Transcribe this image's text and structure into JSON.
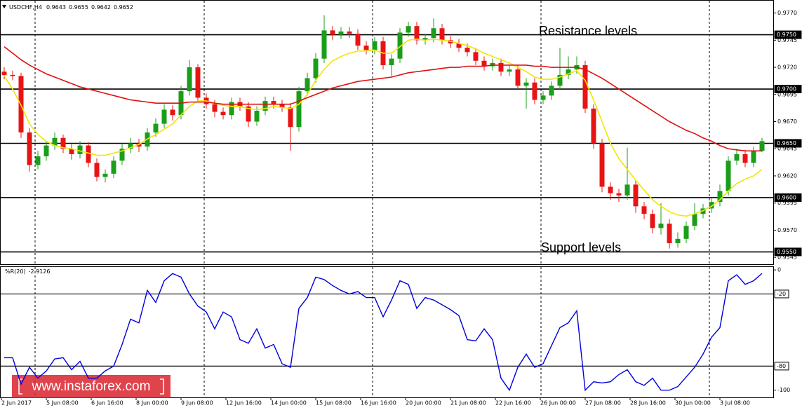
{
  "chart_data": [
    {
      "type": "candlestick",
      "title": "USDCHF,H4",
      "x_tick_labels": [
        "2 Jun 2017",
        "5 Jun 08:00",
        "6 Jun 16:00",
        "8 Jun 00:00",
        "9 Jun 08:00",
        "12 Jun 16:00",
        "14 Jun 00:00",
        "15 Jun 08:00",
        "16 Jun 16:00",
        "20 Jun 00:00",
        "21 Jun 08:00",
        "22 Jun 16:00",
        "26 Jun 00:00",
        "27 Jun 08:00",
        "28 Jun 16:00",
        "30 Jun 00:00",
        "3 Jul 08:00"
      ],
      "open": [
        0.9716,
        0.9713,
        0.9712,
        0.966,
        0.963,
        0.9638,
        0.9648,
        0.9655,
        0.9645,
        0.964,
        0.9648,
        0.9632,
        0.9619,
        0.9622,
        0.9634,
        0.9645,
        0.965,
        0.9647,
        0.966,
        0.9668,
        0.9681,
        0.9676,
        0.9698,
        0.972,
        0.9692,
        0.9686,
        0.9679,
        0.9676,
        0.9688,
        0.9684,
        0.967,
        0.968,
        0.9689,
        0.9686,
        0.9683,
        0.9665,
        0.9698,
        0.971,
        0.9728,
        0.9754,
        0.975,
        0.9753,
        0.9751,
        0.974,
        0.9736,
        0.9744,
        0.9722,
        0.9728,
        0.9752,
        0.9758,
        0.9745,
        0.9747,
        0.9756,
        0.9745,
        0.9742,
        0.9738,
        0.9734,
        0.9726,
        0.9721,
        0.9724,
        0.9716,
        0.9718,
        0.9703,
        0.9706,
        0.969,
        0.9694,
        0.9703,
        0.9713,
        0.9718,
        0.9722,
        0.9682,
        0.965,
        0.961,
        0.9604,
        0.9602,
        0.9612,
        0.9592,
        0.9585,
        0.9572,
        0.9576,
        0.9558,
        0.9562,
        0.9574,
        0.9585,
        0.959,
        0.9596,
        0.9606,
        0.9634,
        0.964,
        0.9632,
        0.9643
      ],
      "high": [
        0.972,
        0.9717,
        0.9715,
        0.9664,
        0.9643,
        0.9652,
        0.966,
        0.9658,
        0.9649,
        0.9652,
        0.9651,
        0.9636,
        0.9626,
        0.9638,
        0.965,
        0.9655,
        0.9654,
        0.9664,
        0.9673,
        0.9686,
        0.9685,
        0.9703,
        0.9727,
        0.9723,
        0.9696,
        0.969,
        0.9683,
        0.9692,
        0.9692,
        0.9688,
        0.9684,
        0.9693,
        0.9693,
        0.969,
        0.9687,
        0.9702,
        0.9715,
        0.9733,
        0.9768,
        0.9758,
        0.9757,
        0.9757,
        0.9755,
        0.9744,
        0.9748,
        0.9748,
        0.9732,
        0.9756,
        0.9762,
        0.9762,
        0.9751,
        0.9765,
        0.976,
        0.9749,
        0.9746,
        0.9742,
        0.9738,
        0.973,
        0.9728,
        0.9728,
        0.9722,
        0.9722,
        0.971,
        0.971,
        0.9698,
        0.9707,
        0.9738,
        0.973,
        0.973,
        0.9726,
        0.9686,
        0.9654,
        0.9614,
        0.9608,
        0.9646,
        0.9616,
        0.9596,
        0.9589,
        0.9595,
        0.958,
        0.9568,
        0.9578,
        0.9595,
        0.9594,
        0.96,
        0.9612,
        0.9638,
        0.9645,
        0.9644,
        0.9647,
        0.9655
      ],
      "low": [
        0.9709,
        0.9708,
        0.9655,
        0.9624,
        0.9626,
        0.9634,
        0.9644,
        0.9641,
        0.9635,
        0.9636,
        0.9628,
        0.9615,
        0.9614,
        0.9618,
        0.963,
        0.9641,
        0.9642,
        0.9643,
        0.9656,
        0.9664,
        0.9671,
        0.9672,
        0.9694,
        0.9688,
        0.9682,
        0.9674,
        0.9672,
        0.9672,
        0.968,
        0.9665,
        0.9666,
        0.9676,
        0.9682,
        0.9679,
        0.9643,
        0.9661,
        0.9694,
        0.9706,
        0.9724,
        0.9745,
        0.9746,
        0.9747,
        0.9736,
        0.9732,
        0.9732,
        0.9718,
        0.9712,
        0.9724,
        0.9748,
        0.9741,
        0.9741,
        0.9743,
        0.9741,
        0.9738,
        0.9734,
        0.973,
        0.9722,
        0.9717,
        0.9717,
        0.9712,
        0.9712,
        0.9699,
        0.9682,
        0.9686,
        0.9686,
        0.969,
        0.9699,
        0.9709,
        0.9714,
        0.9678,
        0.9645,
        0.9605,
        0.9598,
        0.9596,
        0.9598,
        0.9586,
        0.958,
        0.9567,
        0.9566,
        0.9553,
        0.9554,
        0.9558,
        0.957,
        0.9581,
        0.9586,
        0.9592,
        0.9602,
        0.963,
        0.9628,
        0.9628,
        0.9642
      ],
      "close": [
        0.9713,
        0.9712,
        0.966,
        0.963,
        0.9638,
        0.9648,
        0.9655,
        0.9645,
        0.964,
        0.9648,
        0.9632,
        0.9619,
        0.9622,
        0.9634,
        0.9645,
        0.965,
        0.9647,
        0.966,
        0.9668,
        0.9681,
        0.9676,
        0.9698,
        0.972,
        0.9692,
        0.9686,
        0.9679,
        0.9676,
        0.9688,
        0.9684,
        0.967,
        0.968,
        0.9689,
        0.9686,
        0.9683,
        0.9665,
        0.9698,
        0.971,
        0.9728,
        0.9754,
        0.975,
        0.9753,
        0.9751,
        0.974,
        0.9736,
        0.9744,
        0.9722,
        0.9728,
        0.9752,
        0.9758,
        0.9745,
        0.9747,
        0.9756,
        0.9745,
        0.9742,
        0.9738,
        0.9734,
        0.9726,
        0.9721,
        0.9724,
        0.9716,
        0.9718,
        0.9703,
        0.9706,
        0.969,
        0.9694,
        0.9703,
        0.9713,
        0.9718,
        0.9722,
        0.9682,
        0.965,
        0.961,
        0.9604,
        0.9602,
        0.9612,
        0.9592,
        0.9585,
        0.9572,
        0.9576,
        0.9558,
        0.9562,
        0.9574,
        0.9585,
        0.959,
        0.9596,
        0.9606,
        0.9634,
        0.964,
        0.9632,
        0.9643,
        0.9652
      ],
      "up_color": "#1a9e1a",
      "down_color": "#e81414",
      "series": [
        {
          "color": "#f2e600",
          "values": [
            0.9712,
            0.97,
            0.9685,
            0.9668,
            0.9658,
            0.9652,
            0.9648,
            0.9646,
            0.9645,
            0.9643,
            0.9641,
            0.9639,
            0.9639,
            0.9641,
            0.9643,
            0.9646,
            0.9649,
            0.9654,
            0.9658,
            0.9663,
            0.9668,
            0.9676,
            0.9684,
            0.9689,
            0.9689,
            0.9687,
            0.9685,
            0.9684,
            0.9684,
            0.9682,
            0.9681,
            0.9682,
            0.9684,
            0.9683,
            0.9682,
            0.9686,
            0.9695,
            0.9708,
            0.9718,
            0.9726,
            0.973,
            0.9733,
            0.9735,
            0.9735,
            0.9736,
            0.9733,
            0.9733,
            0.9739,
            0.9745,
            0.9746,
            0.9745,
            0.9746,
            0.9745,
            0.9744,
            0.9742,
            0.974,
            0.9737,
            0.9733,
            0.973,
            0.9727,
            0.9724,
            0.972,
            0.9716,
            0.9711,
            0.9709,
            0.9709,
            0.9711,
            0.9714,
            0.9717,
            0.9708,
            0.969,
            0.967,
            0.965,
            0.9636,
            0.9626,
            0.9616,
            0.9607,
            0.9598,
            0.9592,
            0.9587,
            0.9584,
            0.9583,
            0.9585,
            0.9588,
            0.9592,
            0.9598,
            0.9606,
            0.9613,
            0.9617,
            0.962,
            0.9626
          ]
        },
        {
          "color": "#e01010",
          "values": [
            0.9739,
            0.9733,
            0.9727,
            0.9722,
            0.9718,
            0.9714,
            0.9711,
            0.9708,
            0.9705,
            0.9702,
            0.97,
            0.9698,
            0.9696,
            0.9694,
            0.9692,
            0.969,
            0.9689,
            0.9688,
            0.9687,
            0.9687,
            0.9687,
            0.9687,
            0.9688,
            0.9688,
            0.9688,
            0.9687,
            0.9686,
            0.9686,
            0.9686,
            0.9686,
            0.9686,
            0.9686,
            0.9686,
            0.9686,
            0.9686,
            0.9689,
            0.9692,
            0.9695,
            0.9698,
            0.9701,
            0.9703,
            0.9705,
            0.9707,
            0.9708,
            0.9709,
            0.971,
            0.9711,
            0.9713,
            0.9715,
            0.9716,
            0.9717,
            0.9718,
            0.9719,
            0.972,
            0.972,
            0.9721,
            0.9721,
            0.9721,
            0.9722,
            0.9722,
            0.9722,
            0.9722,
            0.9722,
            0.9721,
            0.9721,
            0.972,
            0.972,
            0.972,
            0.972,
            0.9718,
            0.9714,
            0.971,
            0.9705,
            0.97,
            0.9695,
            0.969,
            0.9685,
            0.968,
            0.9675,
            0.967,
            0.9666,
            0.9662,
            0.9659,
            0.9655,
            0.9652,
            0.9648,
            0.9645,
            0.9644,
            0.9643,
            0.9643,
            0.9643
          ]
        }
      ],
      "ylim": [
        0.9538,
        0.9782
      ],
      "yticks": [
        {
          "value": 0.977,
          "label": "0.9770"
        },
        0.9745,
        {
          "value": 0.972,
          "label": "0.9720"
        },
        0.9695,
        {
          "value": 0.967,
          "label": "0.9670"
        },
        0.9645,
        {
          "value": 0.962,
          "label": "0.9620"
        },
        0.9595,
        {
          "value": 0.957,
          "label": "0.9570"
        },
        0.9545
      ],
      "levels": [
        {
          "value": 0.975,
          "label": "0.9750"
        },
        {
          "value": 0.97,
          "label": "0.9700"
        },
        {
          "value": 0.965,
          "label": "0.9650"
        },
        {
          "value": 0.96,
          "label": "0.9600"
        },
        {
          "value": 0.955,
          "label": "0.9550"
        }
      ],
      "annotations": [
        "Resistance levels",
        "Support levels"
      ],
      "watermark": "www.instaforex.com"
    },
    {
      "type": "line",
      "title": "%R(20)",
      "series": [
        {
          "color": "#0000dd",
          "values": [
            -73,
            -73,
            -95,
            -81,
            -90,
            -84,
            -74,
            -73,
            -83,
            -76,
            -90,
            -90,
            -84,
            -80,
            -62,
            -41,
            -44,
            -17,
            -27,
            -9,
            -3,
            -6,
            -20,
            -30,
            -35,
            -49,
            -35,
            -39,
            -58,
            -61,
            -49,
            -65,
            -62,
            -78,
            -81,
            -32,
            -23,
            -6,
            -8,
            -13,
            -17,
            -20,
            -18,
            -23,
            -23,
            -39,
            -25,
            -9,
            -12,
            -32,
            -23,
            -25,
            -29,
            -33,
            -38,
            -58,
            -59,
            -49,
            -58,
            -90,
            -100,
            -81,
            -70,
            -81,
            -78,
            -63,
            -48,
            -44,
            -34,
            -100,
            -93,
            -94,
            -93,
            -87,
            -83,
            -93,
            -96,
            -90,
            -100,
            -100,
            -97,
            -89,
            -81,
            -70,
            -56,
            -48,
            -9,
            -4,
            -12,
            -9,
            -2.9126
          ]
        }
      ],
      "ylim": [
        -106,
        3
      ],
      "yticks": [
        0,
        -100
      ],
      "levels": [
        -20,
        -80
      ]
    }
  ]
}
